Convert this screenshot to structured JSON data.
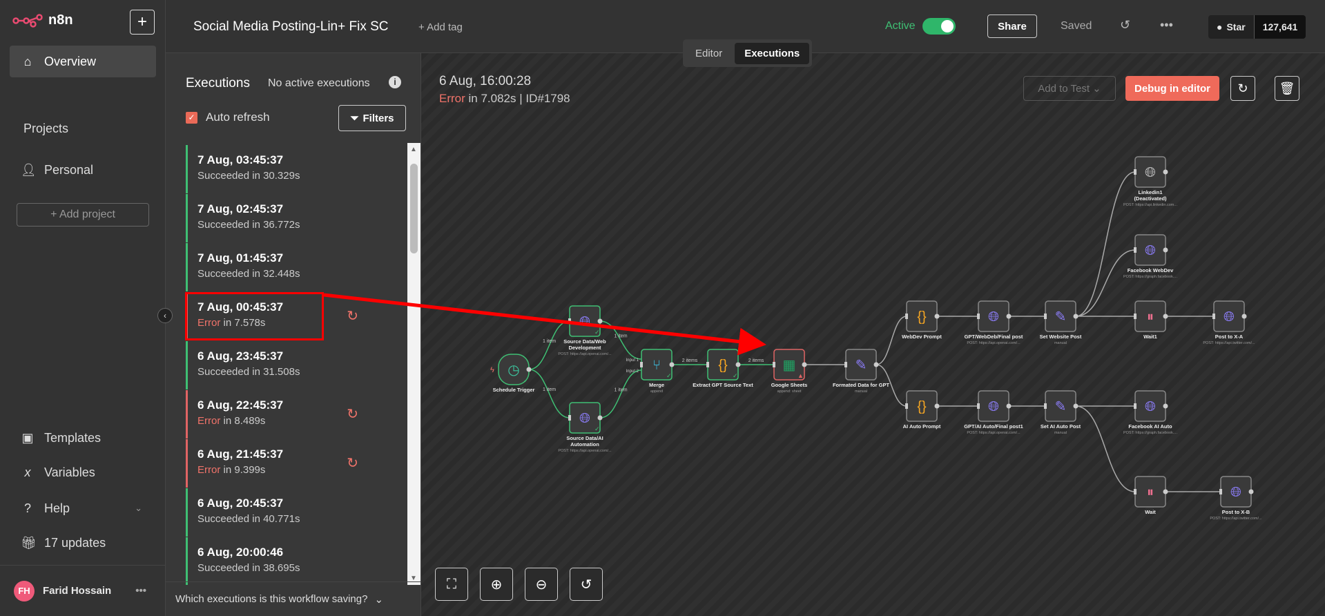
{
  "app": {
    "logo": "n8n",
    "new_label": "+"
  },
  "sidebar": {
    "items": [
      {
        "label": "Overview",
        "icon": "home-icon"
      }
    ],
    "projects_heading": "Projects",
    "personal": "Personal",
    "add_project": "+ Add project",
    "bottom": [
      {
        "label": "Templates",
        "icon": "box-icon"
      },
      {
        "label": "Variables",
        "icon": "variable-icon"
      },
      {
        "label": "Help",
        "icon": "help-icon"
      },
      {
        "label": "17 updates",
        "icon": "gift-icon"
      }
    ],
    "user": {
      "initials": "FH",
      "name": "Farid Hossain",
      "more": "•••"
    }
  },
  "header": {
    "title": "Social Media Posting-Lin+ Fix SC",
    "add_tag": "+ Add tag",
    "active_label": "Active",
    "active": true,
    "share": "Share",
    "saved": "Saved",
    "more": "•••",
    "star": "Star",
    "star_count": "127,641",
    "tabs": [
      "Editor",
      "Executions"
    ],
    "selected_tab": "Executions"
  },
  "executions": {
    "title": "Executions",
    "no_active": "No active executions",
    "auto_refresh": "Auto refresh",
    "auto_refresh_checked": true,
    "filters": "Filters",
    "footer": "Which executions is this workflow saving?",
    "items": [
      {
        "date": "7 Aug, 03:45:37",
        "status": "Succeeded",
        "detail": " in 30.329s",
        "error": false
      },
      {
        "date": "7 Aug, 02:45:37",
        "status": "Succeeded",
        "detail": " in 36.772s",
        "error": false
      },
      {
        "date": "7 Aug, 01:45:37",
        "status": "Succeeded",
        "detail": " in 32.448s",
        "error": false
      },
      {
        "date": "7 Aug, 00:45:37",
        "status": "Error",
        "detail": " in 7.578s",
        "error": true
      },
      {
        "date": "6 Aug, 23:45:37",
        "status": "Succeeded",
        "detail": " in 31.508s",
        "error": false
      },
      {
        "date": "6 Aug, 22:45:37",
        "status": "Error",
        "detail": " in 8.489s",
        "error": true
      },
      {
        "date": "6 Aug, 21:45:37",
        "status": "Error",
        "detail": " in 9.399s",
        "error": true
      },
      {
        "date": "6 Aug, 20:45:37",
        "status": "Succeeded",
        "detail": " in 40.771s",
        "error": false
      },
      {
        "date": "6 Aug, 20:00:46",
        "status": "Succeeded",
        "detail": " in 38.695s",
        "error": false
      }
    ]
  },
  "run": {
    "date": "6 Aug, 16:00:28",
    "status": "Error",
    "detail": " in 7.082s | ID#1798",
    "add_to_test": "Add to Test ⌄",
    "debug": "Debug in editor"
  },
  "nodes": [
    {
      "id": "trigger",
      "name": "Schedule Trigger",
      "sub": "",
      "icon": "clock-icon",
      "state": "success"
    },
    {
      "id": "srcweb",
      "name": "Source Data/Web Development",
      "sub": "POST: https://api.openai.com/...",
      "icon": "globe-icon",
      "state": "success"
    },
    {
      "id": "srcai",
      "name": "Source Data/AI Automation",
      "sub": "POST: https://api.openai.com/...",
      "icon": "globe-icon",
      "state": "success"
    },
    {
      "id": "merge",
      "name": "Merge",
      "sub": "append",
      "icon": "merge-icon",
      "state": "success"
    },
    {
      "id": "extract",
      "name": "Extract GPT Source Text",
      "sub": "",
      "icon": "code-icon",
      "state": "success"
    },
    {
      "id": "sheets",
      "name": "Google Sheets",
      "sub": "append: sheet",
      "icon": "sheets-icon",
      "state": "error"
    },
    {
      "id": "fmt",
      "name": "Formated Data for GPT",
      "sub": "manual",
      "icon": "pencil-icon",
      "state": "idle"
    },
    {
      "id": "wdp",
      "name": "WebDev Prompt",
      "sub": "",
      "icon": "code-icon",
      "state": "idle"
    },
    {
      "id": "gptw",
      "name": "GPT/WebDeb/Final post",
      "sub": "POST: https://api.openai.com/...",
      "icon": "globe-icon",
      "state": "idle"
    },
    {
      "id": "setw",
      "name": "Set Website Post",
      "sub": "manual",
      "icon": "pencil-icon",
      "state": "idle"
    },
    {
      "id": "li",
      "name": "Linkedin1 (Deactivated)",
      "sub": "POST: https://api.linkedin.com...",
      "icon": "globe-icon",
      "state": "disabled"
    },
    {
      "id": "fbw",
      "name": "Facebook WebDev",
      "sub": "POST: https://graph.facebook....",
      "icon": "globe-icon",
      "state": "idle"
    },
    {
      "id": "wait1",
      "name": "Wait1",
      "sub": "",
      "icon": "pause-icon",
      "state": "idle"
    },
    {
      "id": "xa",
      "name": "Post to X-A",
      "sub": "POST: https://api.twitter.com/...",
      "icon": "globe-icon",
      "state": "idle"
    },
    {
      "id": "aip",
      "name": "AI Auto Prompt",
      "sub": "",
      "icon": "code-icon",
      "state": "idle"
    },
    {
      "id": "gpta",
      "name": "GPT/AI Auto/Final post1",
      "sub": "POST: https://api.openai.com/...",
      "icon": "globe-icon",
      "state": "idle"
    },
    {
      "id": "seta",
      "name": "Set AI Auto Post",
      "sub": "manual",
      "icon": "pencil-icon",
      "state": "idle"
    },
    {
      "id": "fba",
      "name": "Facebook AI Auto",
      "sub": "POST: https://graph.facebook....",
      "icon": "globe-icon",
      "state": "idle"
    },
    {
      "id": "wait",
      "name": "Wait",
      "sub": "",
      "icon": "pause-icon",
      "state": "idle"
    },
    {
      "id": "xb",
      "name": "Post to X-B",
      "sub": "POST: https://api.twitter.com/...",
      "icon": "globe-icon",
      "state": "idle"
    }
  ],
  "connections": [
    {
      "from": "trigger",
      "to": "srcweb",
      "label": "1 item",
      "ok": true
    },
    {
      "from": "trigger",
      "to": "srcai",
      "label": "1 item",
      "ok": true
    },
    {
      "from": "srcweb",
      "to": "merge",
      "label": "1 item",
      "ok": true,
      "input": "Input 1"
    },
    {
      "from": "srcai",
      "to": "merge",
      "label": "1 item",
      "ok": true,
      "input": "Input 2"
    },
    {
      "from": "merge",
      "to": "extract",
      "label": "2 items",
      "ok": true
    },
    {
      "from": "extract",
      "to": "sheets",
      "label": "2 items",
      "ok": true
    },
    {
      "from": "sheets",
      "to": "fmt",
      "label": "",
      "ok": false
    },
    {
      "from": "fmt",
      "to": "wdp",
      "label": "",
      "ok": false
    },
    {
      "from": "fmt",
      "to": "aip",
      "label": "",
      "ok": false
    },
    {
      "from": "wdp",
      "to": "gptw",
      "label": "",
      "ok": false
    },
    {
      "from": "gptw",
      "to": "setw",
      "label": "",
      "ok": false
    },
    {
      "from": "setw",
      "to": "li",
      "label": "",
      "ok": false
    },
    {
      "from": "setw",
      "to": "fbw",
      "label": "",
      "ok": false
    },
    {
      "from": "setw",
      "to": "wait1",
      "label": "",
      "ok": false
    },
    {
      "from": "wait1",
      "to": "xa",
      "label": "",
      "ok": false
    },
    {
      "from": "aip",
      "to": "gpta",
      "label": "",
      "ok": false
    },
    {
      "from": "gpta",
      "to": "seta",
      "label": "",
      "ok": false
    },
    {
      "from": "seta",
      "to": "fba",
      "label": "",
      "ok": false
    },
    {
      "from": "seta",
      "to": "wait",
      "label": "",
      "ok": false
    },
    {
      "from": "wait",
      "to": "xb",
      "label": "",
      "ok": false
    }
  ],
  "colors": {
    "success": "#3fc074",
    "error": "#e06464",
    "accent": "#ef6a5a",
    "annotation": "#ff0000"
  }
}
